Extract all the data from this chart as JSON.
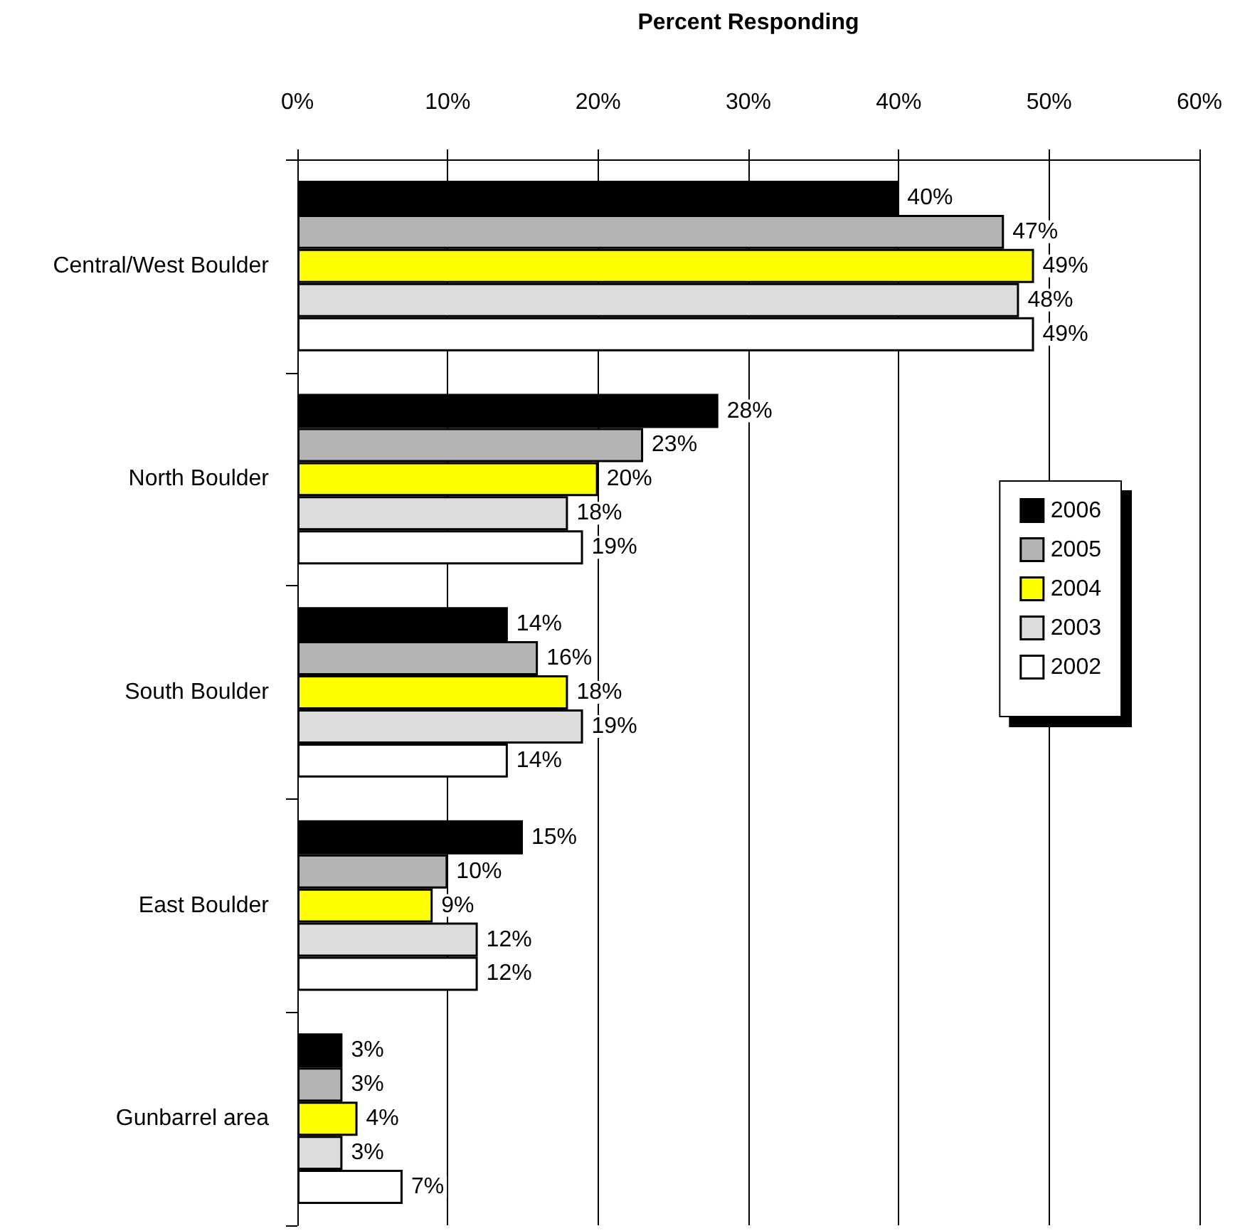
{
  "chart_data": {
    "type": "bar",
    "orientation": "horizontal",
    "xlabel": "Percent Responding",
    "categories": [
      "Central/West Boulder",
      "North Boulder",
      "South Boulder",
      "East Boulder",
      "Gunbarrel area"
    ],
    "series": [
      {
        "name": "2006",
        "color": "#000000",
        "values": [
          40,
          28,
          14,
          15,
          3
        ],
        "value_labels": [
          "40%",
          "28%",
          "14%",
          "15%",
          "3%"
        ]
      },
      {
        "name": "2005",
        "color": "#b4b4b4",
        "values": [
          47,
          23,
          16,
          10,
          3
        ],
        "value_labels": [
          "47%",
          "23%",
          "16%",
          "10%",
          "3%"
        ]
      },
      {
        "name": "2004",
        "color": "#ffff00",
        "values": [
          49,
          20,
          18,
          9,
          4
        ],
        "value_labels": [
          "49%",
          "20%",
          "18%",
          "9%",
          "4%"
        ]
      },
      {
        "name": "2003",
        "color": "#dcdcdc",
        "values": [
          48,
          18,
          19,
          12,
          3
        ],
        "value_labels": [
          "48%",
          "18%",
          "19%",
          "12%",
          "3%"
        ]
      },
      {
        "name": "2002",
        "color": "#ffffff",
        "values": [
          49,
          19,
          14,
          12,
          7
        ],
        "value_labels": [
          "49%",
          "19%",
          "14%",
          "12%",
          "7%"
        ]
      }
    ],
    "xlim": [
      0,
      60
    ],
    "xticks": [
      {
        "value": 0,
        "label": "0%"
      },
      {
        "value": 10,
        "label": "10%"
      },
      {
        "value": 20,
        "label": "20%"
      },
      {
        "value": 30,
        "label": "30%"
      },
      {
        "value": 40,
        "label": "40%"
      },
      {
        "value": 50,
        "label": "50%"
      },
      {
        "value": 60,
        "label": "60%"
      }
    ],
    "grid": "x",
    "legend": "right"
  }
}
